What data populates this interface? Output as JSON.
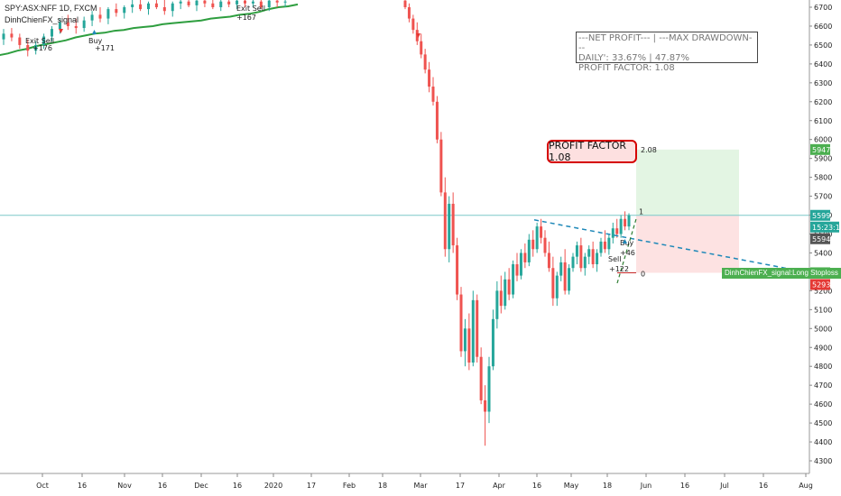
{
  "legend": {
    "title": "SPY:ASX:NFF 1D, FXCM",
    "indicator": "DinhChienFX_signal"
  },
  "stats_box": {
    "line1": "---NET PROFIT---  |  ---MAX DRAWDOWN---",
    "line2": "DAILY': 33.67%  |  47.87%",
    "line3": "PROFIT FACTOR: 1.08"
  },
  "profit_factor_label": "PROFIT FACTOR 1.08",
  "strategy_stop_label": "DinhChienFX_signal:Long Stoploss",
  "annotations": {
    "target_ratio": "2.08",
    "entry_ratio": "1",
    "stop_ratio": "0",
    "signals": [
      "Exit Sell",
      "Buy",
      "+176",
      "+171",
      "Exit Sell",
      "+167",
      "Buy",
      "+46",
      "Sell",
      "+122"
    ]
  },
  "price_badges": {
    "target": "5947",
    "current": "5599",
    "countdown": "15:23:15",
    "prev_close": "5594",
    "stoploss": "5295",
    "low_stop": "5293"
  },
  "colors": {
    "up": "#26a69a",
    "down": "#ef5350",
    "ma": "#2e9e3f",
    "trend": "#1e88b8",
    "target_zone": "#e3f5e3",
    "stop_zone": "#fde2e2",
    "badge_green": "#4caf50",
    "badge_dark": "#555555",
    "badge_red": "#e53935",
    "badge_teal": "#26a69a"
  },
  "chart_data": {
    "type": "candlestick",
    "y_axis": {
      "ticks": [
        4300,
        4400,
        4500,
        4600,
        4700,
        4800,
        4900,
        5000,
        5100,
        5200,
        5300,
        5400,
        5500,
        5600,
        5700,
        5800,
        5900,
        6000,
        6100,
        6200,
        6300,
        6400,
        6500,
        6600,
        6700
      ],
      "range": [
        4240,
        6740
      ]
    },
    "x_axis": {
      "ticks": [
        "Oct",
        "16",
        "Nov",
        "16",
        "Dec",
        "16",
        "2020",
        "17",
        "Feb",
        "18",
        "Mar",
        "17",
        "Apr",
        "16",
        "May",
        "18",
        "Jun",
        "16",
        "Jul",
        "16",
        "Aug"
      ]
    },
    "levels": {
      "current_price": 5599,
      "target": 5947,
      "stoploss": 5295
    },
    "candles": [
      [
        6530,
        6585,
        6500,
        6560
      ],
      [
        6560,
        6590,
        6520,
        6540
      ],
      [
        6540,
        6560,
        6480,
        6500
      ],
      [
        6500,
        6530,
        6440,
        6470
      ],
      [
        6470,
        6520,
        6450,
        6500
      ],
      [
        6500,
        6560,
        6480,
        6545
      ],
      [
        6545,
        6600,
        6520,
        6585
      ],
      [
        6585,
        6640,
        6560,
        6620
      ],
      [
        6620,
        6660,
        6580,
        6600
      ],
      [
        6600,
        6640,
        6560,
        6590
      ],
      [
        6590,
        6650,
        6570,
        6630
      ],
      [
        6630,
        6680,
        6600,
        6660
      ],
      [
        6660,
        6700,
        6620,
        6640
      ],
      [
        6640,
        6700,
        6610,
        6690
      ],
      [
        6690,
        6720,
        6650,
        6670
      ],
      [
        6670,
        6710,
        6640,
        6700
      ],
      [
        6700,
        6740,
        6670,
        6715
      ],
      [
        6715,
        6740,
        6680,
        6690
      ],
      [
        6690,
        6730,
        6660,
        6720
      ],
      [
        6720,
        6740,
        6690,
        6700
      ],
      [
        6700,
        6740,
        6660,
        6680
      ],
      [
        6680,
        6730,
        6650,
        6720
      ],
      [
        6720,
        6740,
        6690,
        6730
      ],
      [
        6730,
        6740,
        6700,
        6710
      ],
      [
        6710,
        6740,
        6680,
        6735
      ],
      [
        6735,
        6740,
        6700,
        6720
      ],
      [
        6720,
        6740,
        6690,
        6700
      ],
      [
        6700,
        6740,
        6680,
        6730
      ],
      [
        6730,
        6740,
        6700,
        6715
      ],
      [
        6715,
        6740,
        6690,
        6735
      ],
      [
        6735,
        6740,
        6700,
        6720
      ],
      [
        6720,
        6740,
        6700,
        6730
      ],
      [
        6730,
        6740,
        6690,
        6700
      ],
      [
        6700,
        6740,
        6680,
        6735
      ],
      [
        6735,
        6740,
        6700,
        6725
      ],
      [
        6725,
        6740,
        6700,
        6730
      ],
      [
        6735,
        6740,
        6690,
        6700
      ],
      [
        6700,
        6720,
        6620,
        6640
      ],
      [
        6640,
        6660,
        6560,
        6580
      ],
      [
        6580,
        6620,
        6500,
        6520
      ],
      [
        6520,
        6560,
        6430,
        6450
      ],
      [
        6450,
        6480,
        6350,
        6370
      ],
      [
        6370,
        6410,
        6250,
        6280
      ],
      [
        6280,
        6330,
        6180,
        6200
      ],
      [
        6200,
        6230,
        5980,
        6000
      ],
      [
        6000,
        6040,
        5700,
        5720
      ],
      [
        5720,
        5800,
        5380,
        5420
      ],
      [
        5420,
        5700,
        5350,
        5660
      ],
      [
        5660,
        5720,
        5400,
        5440
      ],
      [
        5440,
        5480,
        5150,
        5180
      ],
      [
        5180,
        5220,
        4850,
        4880
      ],
      [
        4880,
        5050,
        4800,
        5000
      ],
      [
        5000,
        5080,
        4780,
        4820
      ],
      [
        4820,
        5200,
        4800,
        5150
      ],
      [
        5150,
        5180,
        4820,
        4850
      ],
      [
        4850,
        4900,
        4600,
        4620
      ],
      [
        4620,
        4700,
        4380,
        4560
      ],
      [
        4560,
        4850,
        4500,
        4800
      ],
      [
        4800,
        5100,
        4780,
        5050
      ],
      [
        5050,
        5250,
        5000,
        5200
      ],
      [
        5200,
        5280,
        5080,
        5120
      ],
      [
        5120,
        5300,
        5100,
        5260
      ],
      [
        5260,
        5320,
        5150,
        5180
      ],
      [
        5180,
        5360,
        5160,
        5340
      ],
      [
        5340,
        5400,
        5250,
        5280
      ],
      [
        5280,
        5420,
        5260,
        5400
      ],
      [
        5400,
        5450,
        5320,
        5350
      ],
      [
        5350,
        5500,
        5330,
        5470
      ],
      [
        5470,
        5520,
        5380,
        5420
      ],
      [
        5420,
        5560,
        5400,
        5540
      ],
      [
        5540,
        5580,
        5450,
        5480
      ],
      [
        5480,
        5520,
        5380,
        5400
      ],
      [
        5400,
        5460,
        5300,
        5320
      ],
      [
        5320,
        5380,
        5120,
        5160
      ],
      [
        5160,
        5300,
        5120,
        5280
      ],
      [
        5280,
        5380,
        5250,
        5350
      ],
      [
        5350,
        5420,
        5180,
        5200
      ],
      [
        5200,
        5340,
        5180,
        5320
      ],
      [
        5320,
        5400,
        5300,
        5380
      ],
      [
        5380,
        5460,
        5340,
        5440
      ],
      [
        5440,
        5480,
        5300,
        5320
      ],
      [
        5320,
        5400,
        5280,
        5380
      ],
      [
        5380,
        5440,
        5340,
        5420
      ],
      [
        5420,
        5460,
        5320,
        5340
      ],
      [
        5340,
        5420,
        5300,
        5400
      ],
      [
        5400,
        5480,
        5380,
        5460
      ],
      [
        5460,
        5520,
        5400,
        5420
      ],
      [
        5420,
        5500,
        5390,
        5480
      ],
      [
        5480,
        5560,
        5450,
        5530
      ],
      [
        5530,
        5580,
        5480,
        5500
      ],
      [
        5500,
        5600,
        5480,
        5580
      ],
      [
        5580,
        5620,
        5520,
        5540
      ],
      [
        5540,
        5610,
        5520,
        5599
      ]
    ],
    "ma_segment": [
      6445,
      6455,
      6470,
      6480,
      6495,
      6505,
      6515,
      6525,
      6540,
      6550,
      6560,
      6565,
      6575,
      6580,
      6590,
      6595,
      6600,
      6610,
      6615,
      6620,
      6625,
      6630,
      6640,
      6645,
      6650,
      6660,
      6665,
      6675,
      6690,
      6700,
      6705,
      6715
    ]
  }
}
